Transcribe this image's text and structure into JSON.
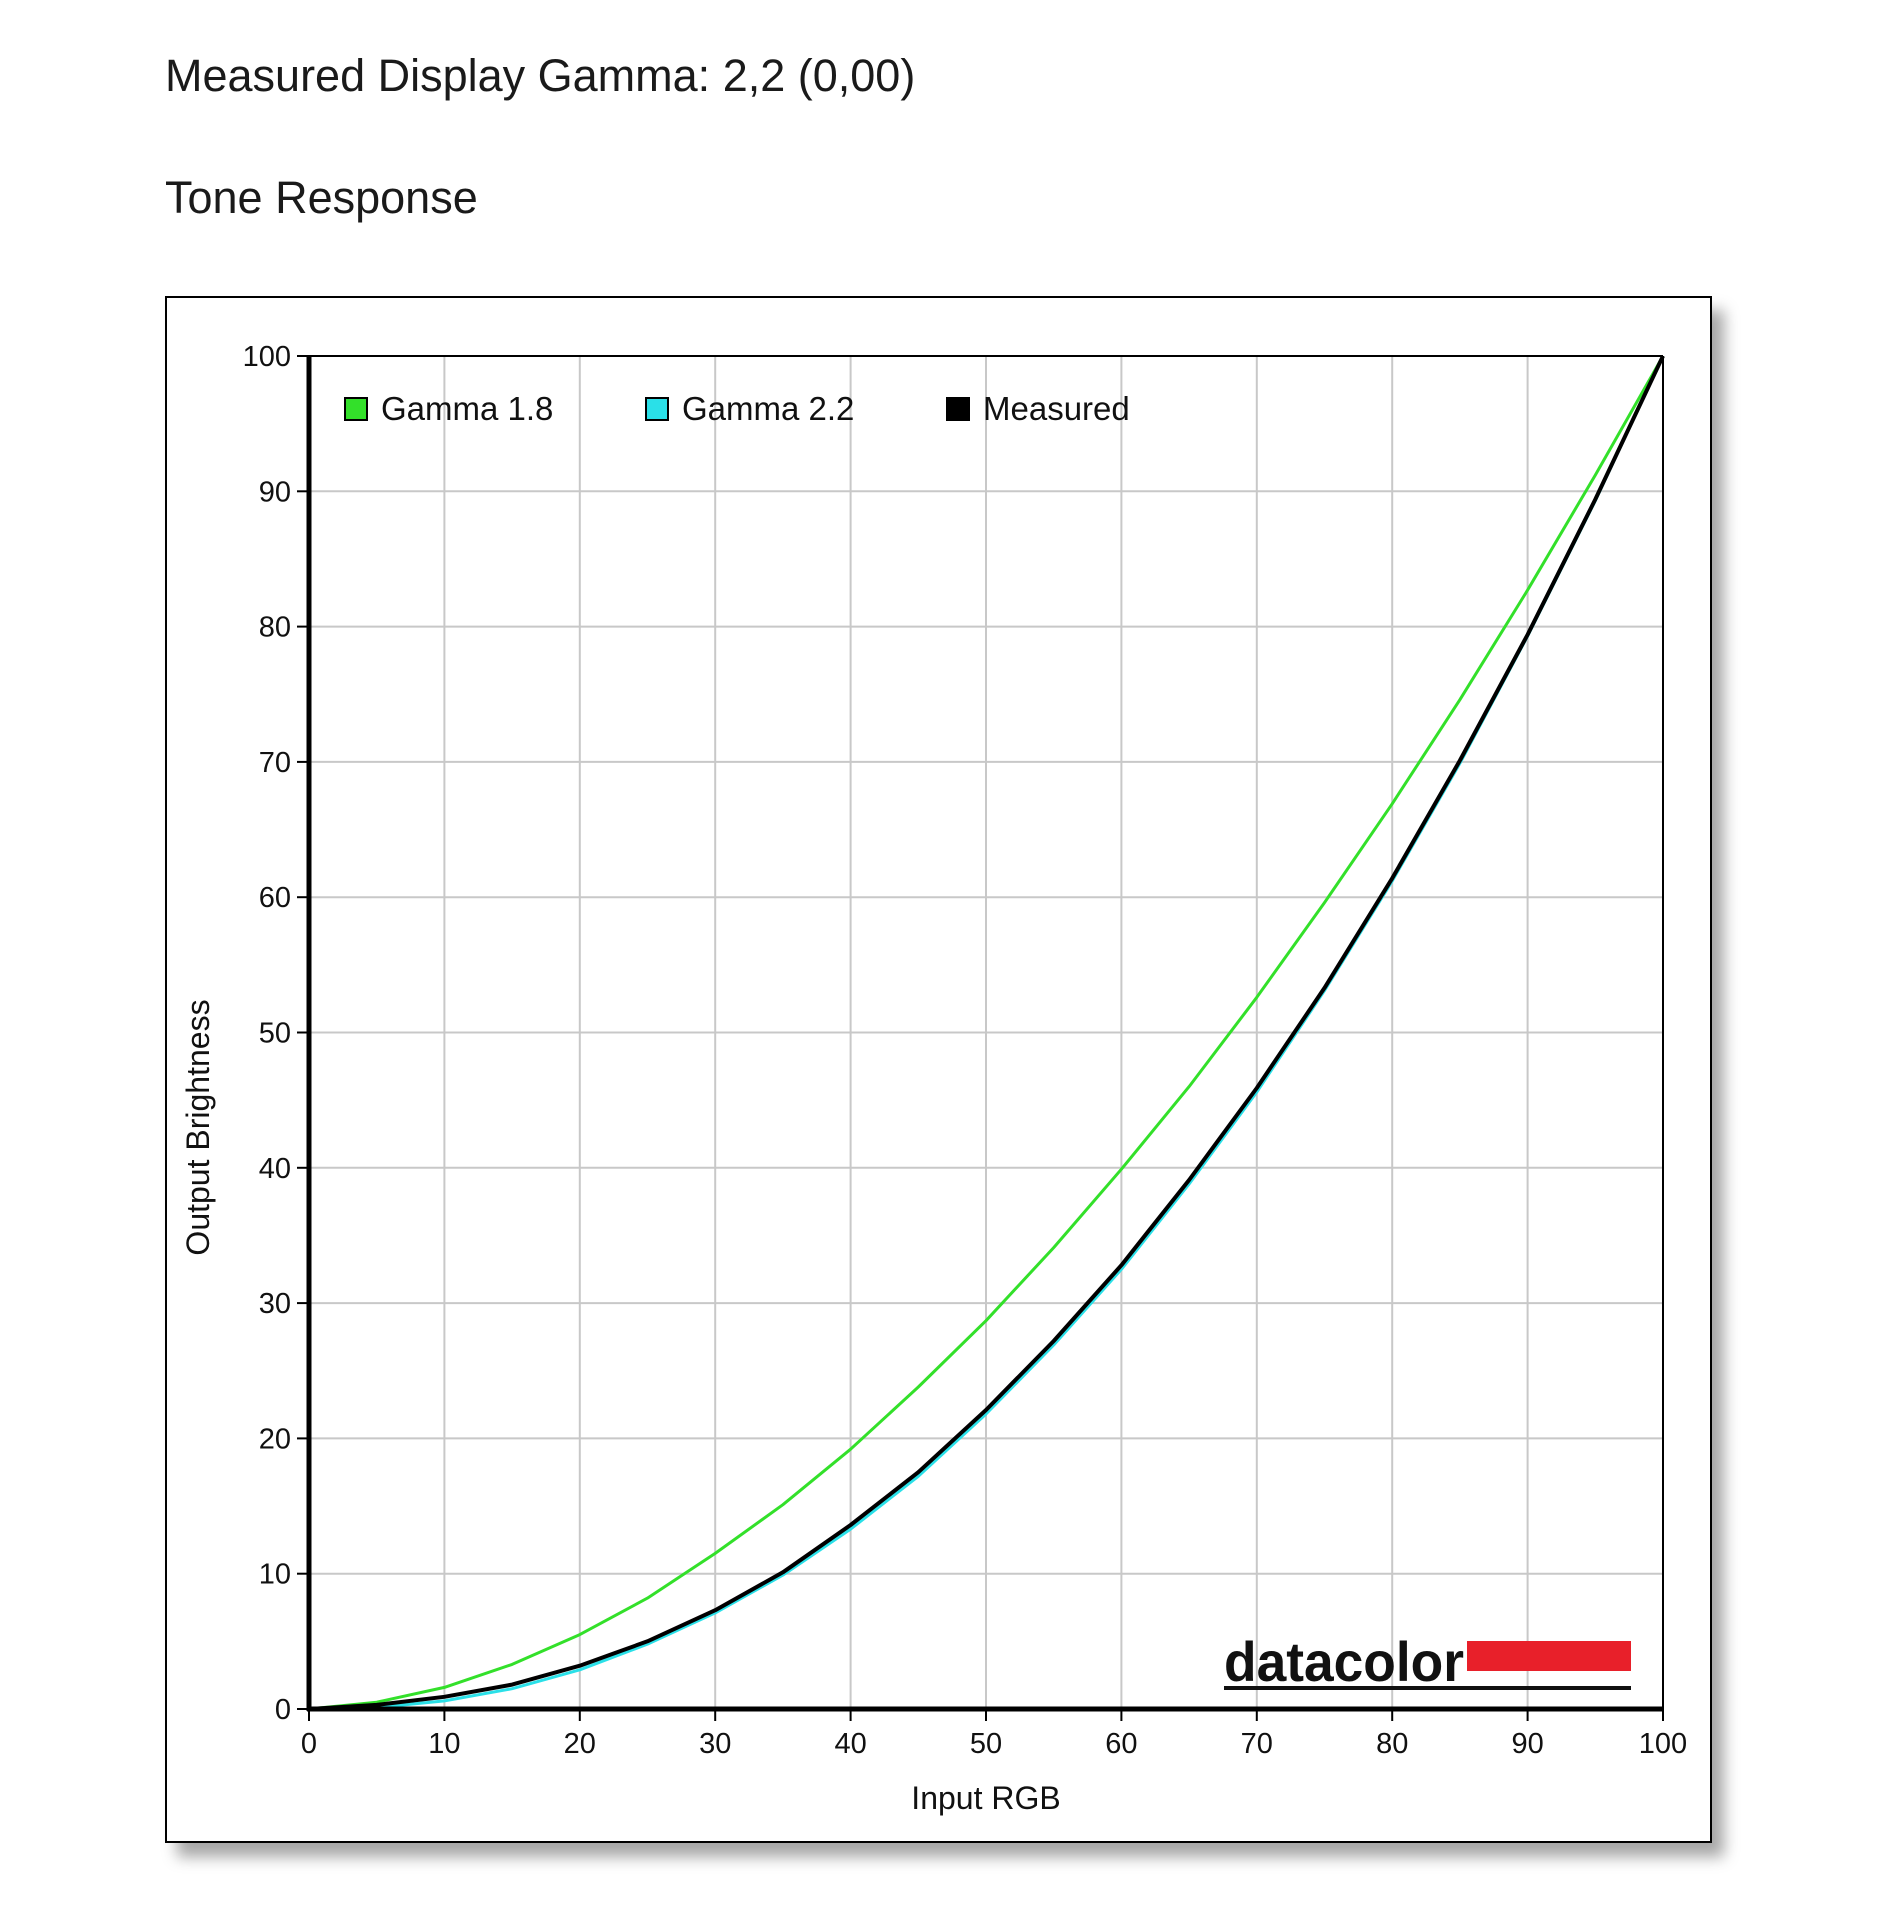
{
  "header": {
    "measured_gamma": "Measured Display Gamma: 2,2 (0,00)",
    "section_title": "Tone Response"
  },
  "logo": {
    "text": "datacolor",
    "bar_color": "#e8202a"
  },
  "chart_data": {
    "type": "line",
    "title": "",
    "xlabel": "Input RGB",
    "ylabel": "Output Brightness",
    "xlim": [
      0,
      100
    ],
    "ylim": [
      0,
      100
    ],
    "xticks": [
      0,
      10,
      20,
      30,
      40,
      50,
      60,
      70,
      80,
      90,
      100
    ],
    "yticks": [
      0,
      10,
      20,
      30,
      40,
      50,
      60,
      70,
      80,
      90,
      100
    ],
    "grid": true,
    "legend_position": "top-left",
    "x": [
      0,
      5,
      10,
      15,
      20,
      25,
      30,
      35,
      40,
      45,
      50,
      55,
      60,
      65,
      70,
      75,
      80,
      85,
      90,
      95,
      100
    ],
    "series": [
      {
        "name": "Gamma 1.8",
        "color": "#33e02a",
        "values": [
          0,
          0.5,
          1.6,
          3.3,
          5.5,
          8.2,
          11.5,
          15.1,
          19.2,
          23.8,
          28.7,
          34.1,
          39.9,
          46.0,
          52.6,
          59.6,
          66.9,
          74.6,
          82.7,
          91.2,
          100
        ]
      },
      {
        "name": "Gamma 2.2",
        "color": "#2ae0e8",
        "values": [
          0,
          0.1,
          0.6,
          1.5,
          2.9,
          4.8,
          7.1,
          9.9,
          13.3,
          17.2,
          21.8,
          26.9,
          32.5,
          38.8,
          45.6,
          53.1,
          61.2,
          69.9,
          79.3,
          89.3,
          100
        ]
      },
      {
        "name": "Measured",
        "color": "#000000",
        "values": [
          0,
          0.3,
          0.9,
          1.8,
          3.2,
          5.0,
          7.3,
          10.1,
          13.6,
          17.5,
          22.1,
          27.2,
          32.8,
          39.1,
          45.9,
          53.3,
          61.4,
          70.1,
          79.4,
          89.4,
          100
        ]
      }
    ]
  }
}
